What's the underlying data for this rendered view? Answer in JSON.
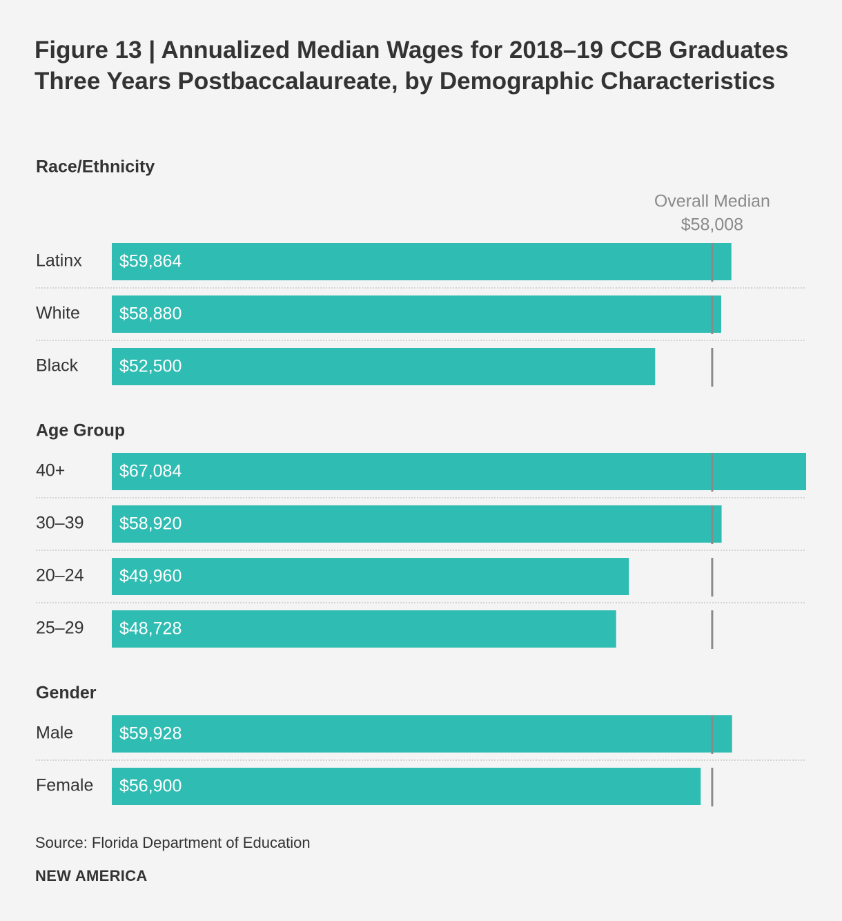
{
  "title": "Figure 13 | Annualized Median Wages for 2018–19 CCB Graduates Three Years Postbaccalaureate, by Demographic Characteristics",
  "source": "Source: Florida Department of Education",
  "brand": "NEW AMERICA",
  "colors": {
    "bar": "#2fbcb2",
    "median_line": "#8a8a8a",
    "divider": "#c8c8c8",
    "text": "#333333"
  },
  "chart_data": {
    "type": "bar",
    "orientation": "horizontal",
    "title": "Figure 13 | Annualized Median Wages for 2018–19 CCB Graduates Three Years Postbaccalaureate, by Demographic Characteristics",
    "xlim": [
      0,
      67084
    ],
    "reference_line": {
      "label": "Overall Median",
      "value": 58008,
      "value_label": "$58,008"
    },
    "groups": [
      {
        "name": "Race/Ethnicity",
        "categories": [
          "Latinx",
          "White",
          "Black"
        ],
        "values": [
          59864,
          58880,
          52500
        ],
        "labels": [
          "$59,864",
          "$58,880",
          "$52,500"
        ]
      },
      {
        "name": "Age Group",
        "categories": [
          "40+",
          "30–39",
          "20–24",
          "25–29"
        ],
        "values": [
          67084,
          58920,
          49960,
          48728
        ],
        "labels": [
          "$67,084",
          "$58,920",
          "$49,960",
          "$48,728"
        ]
      },
      {
        "name": "Gender",
        "categories": [
          "Male",
          "Female"
        ],
        "values": [
          59928,
          56900
        ],
        "labels": [
          "$59,928",
          "$56,900"
        ]
      }
    ]
  }
}
